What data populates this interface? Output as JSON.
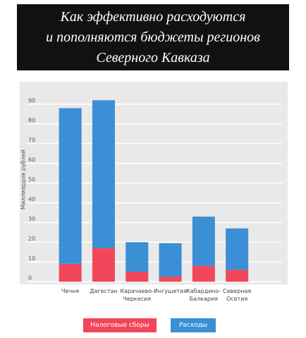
{
  "chart_data": {
    "type": "stacked_bar",
    "title": [
      "Как эффективно расходуются",
      "и пополняются бюджеты регионов",
      "Северного Кавказа"
    ],
    "y_label": "Миллиардов рублей",
    "categories": [
      "Чечня",
      "Дагестан",
      "Карачаево-\nЧеркесия",
      "Ингушетия",
      "Кабардино-\nБалкария",
      "Северная\nОсетия"
    ],
    "series": [
      {
        "name": "Налоговые сборы",
        "color": "#f2475a",
        "values": [
          9,
          17,
          5,
          2.5,
          8,
          6
        ]
      },
      {
        "name": "Расходы",
        "color": "#3b8fd5",
        "values": [
          79,
          75,
          15,
          17,
          25,
          21
        ]
      }
    ],
    "ylim": [
      0,
      100
    ],
    "yticks": [
      0,
      10,
      20,
      30,
      40,
      50,
      60,
      70,
      80,
      90
    ],
    "grid": true
  }
}
